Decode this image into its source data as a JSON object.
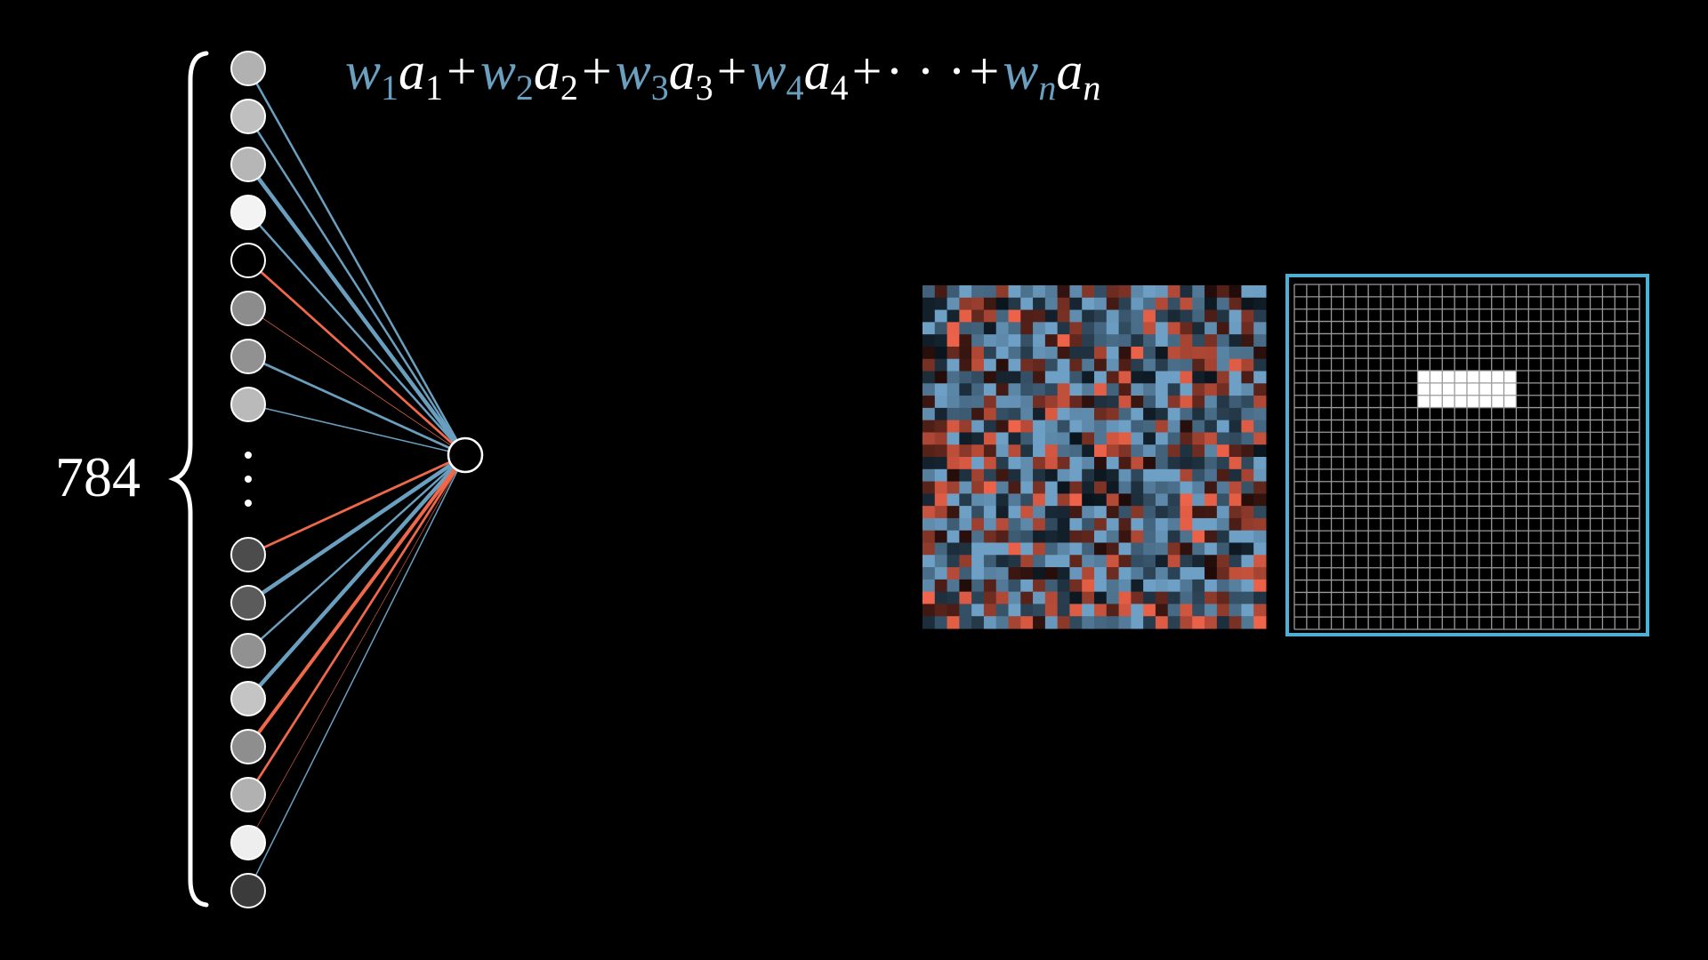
{
  "input_count_label": "784",
  "formula": {
    "terms": [
      {
        "w": "w",
        "w_sub": "1",
        "a": "a",
        "a_sub": "1"
      },
      {
        "w": "w",
        "w_sub": "2",
        "a": "a",
        "a_sub": "2"
      },
      {
        "w": "w",
        "w_sub": "3",
        "a": "a",
        "a_sub": "3"
      },
      {
        "w": "w",
        "w_sub": "4",
        "a": "a",
        "a_sub": "4"
      },
      {
        "w": "w",
        "w_sub": "n",
        "a": "a",
        "a_sub": "n"
      }
    ],
    "plus": "+",
    "ellipsis": "· · ·"
  },
  "colors": {
    "background": "#000000",
    "weight_positive": "#6a9fc0",
    "weight_negative": "#f0684a",
    "frame": "#4fb0d6",
    "grid_line": "#9a9a9a"
  },
  "network": {
    "input_activations_top": [
      0.68,
      0.74,
      0.7,
      0.95,
      0.0,
      0.53,
      0.55,
      0.72
    ],
    "input_activations_bottom": [
      0.27,
      0.33,
      0.55,
      0.76,
      0.54,
      0.68,
      0.93,
      0.2
    ],
    "weights_top": [
      0.5,
      0.5,
      0.9,
      0.5,
      -0.55,
      -0.15,
      0.55,
      0.3
    ],
    "weights_bottom": [
      -0.55,
      0.9,
      0.5,
      0.9,
      -0.8,
      -0.55,
      -0.08,
      0.3
    ]
  },
  "weight_grid": {
    "rows": 28,
    "cols": 28
  },
  "pixel_grid": {
    "rows": 28,
    "cols": 28,
    "highlight_rows": [
      7,
      9
    ],
    "highlight_cols": [
      10,
      17
    ]
  }
}
